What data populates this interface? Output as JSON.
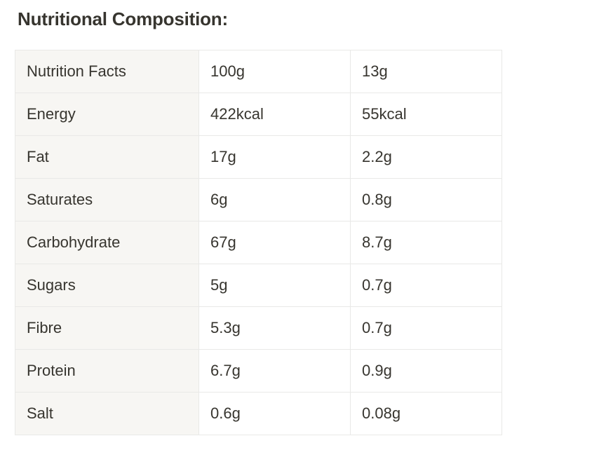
{
  "section": {
    "title": "Nutritional Composition:"
  },
  "table": {
    "rows": [
      {
        "nutrient": "Nutrition Facts",
        "per100g": "100g",
        "perPortion": "13g"
      },
      {
        "nutrient": "Energy",
        "per100g": "422kcal",
        "perPortion": "55kcal"
      },
      {
        "nutrient": "Fat",
        "per100g": "17g",
        "perPortion": "2.2g"
      },
      {
        "nutrient": "Saturates",
        "per100g": "6g",
        "perPortion": "0.8g"
      },
      {
        "nutrient": "Carbohydrate",
        "per100g": "67g",
        "perPortion": "8.7g"
      },
      {
        "nutrient": "Sugars",
        "per100g": "5g",
        "perPortion": "0.7g"
      },
      {
        "nutrient": "Fibre",
        "per100g": "5.3g",
        "perPortion": "0.7g"
      },
      {
        "nutrient": "Protein",
        "per100g": "6.7g",
        "perPortion": "0.9g"
      },
      {
        "nutrient": "Salt",
        "per100g": "0.6g",
        "perPortion": "0.08g"
      }
    ]
  }
}
